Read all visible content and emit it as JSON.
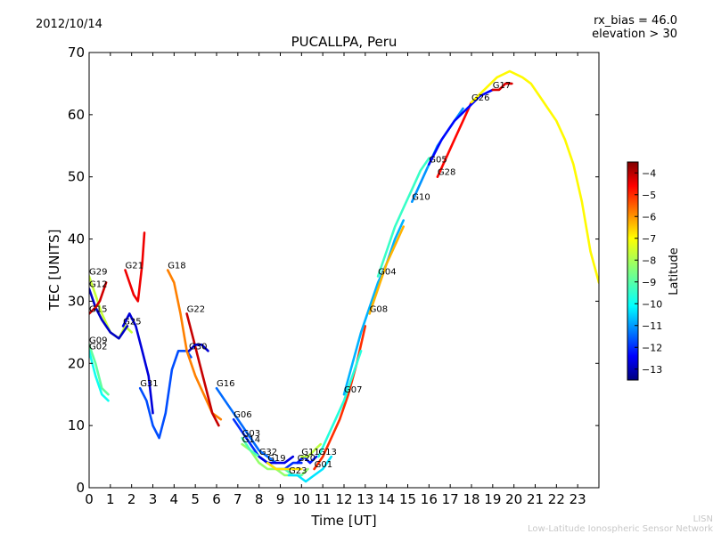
{
  "header": {
    "date": "2012/10/14",
    "info_line1": "rx_bias = 46.0",
    "info_line2": "elevation > 30"
  },
  "watermark": {
    "line1": "LISN",
    "line2": "Low-Latitude Ionospheric Sensor Network"
  },
  "chart_data": {
    "type": "line",
    "title": "PUCALLPA, Peru",
    "xlabel": "Time [UT]",
    "ylabel": "TEC [UNITS]",
    "xlim": [
      0,
      24
    ],
    "ylim": [
      0,
      70
    ],
    "xticks": [
      0,
      1,
      2,
      3,
      4,
      5,
      6,
      7,
      8,
      9,
      10,
      11,
      12,
      13,
      14,
      15,
      16,
      17,
      18,
      19,
      20,
      21,
      22,
      23
    ],
    "yticks": [
      0,
      10,
      20,
      30,
      40,
      50,
      60,
      70
    ],
    "grid": false,
    "colorbar": {
      "label": "Latitude",
      "min": -13.5,
      "max": -3.5,
      "ticks": [
        -4,
        -5,
        -6,
        -7,
        -8,
        -9,
        -10,
        -11,
        -12,
        -13
      ],
      "colormap": "jet"
    },
    "series": [
      {
        "name": "G29",
        "lat": -7.8,
        "x": [
          0,
          0.3,
          0.6,
          1.0,
          1.4,
          1.7,
          2.0
        ],
        "y": [
          34,
          31,
          28,
          25,
          24,
          26,
          25
        ]
      },
      {
        "name": "G12",
        "lat": -12.8,
        "x": [
          0,
          0.3,
          0.6,
          1.0,
          1.4,
          1.8
        ],
        "y": [
          32,
          29,
          27,
          25,
          24,
          26
        ]
      },
      {
        "name": "G15",
        "lat": -4.3,
        "x": [
          0,
          0.3,
          0.5,
          0.8
        ],
        "y": [
          28,
          29,
          30,
          33
        ]
      },
      {
        "name": "G09",
        "lat": -8.8,
        "x": [
          0,
          0.3,
          0.6,
          0.9
        ],
        "y": [
          23,
          20,
          16,
          15
        ]
      },
      {
        "name": "G02",
        "lat": -9.6,
        "x": [
          0,
          0.3,
          0.6,
          0.9
        ],
        "y": [
          22,
          18,
          15,
          14
        ]
      },
      {
        "name": "G21",
        "lat": -4.6,
        "x": [
          1.7,
          1.9,
          2.1,
          2.3,
          2.5,
          2.6
        ],
        "y": [
          35,
          33,
          31,
          30,
          36,
          41
        ]
      },
      {
        "name": "G25",
        "lat": -12.6,
        "x": [
          1.6,
          1.9,
          2.2,
          2.5,
          2.8,
          3.0
        ],
        "y": [
          26,
          28,
          26,
          22,
          18,
          12
        ]
      },
      {
        "name": "G31",
        "lat": -11.5,
        "x": [
          2.4,
          2.7,
          3.0,
          3.3,
          3.6,
          3.9,
          4.2,
          4.6,
          4.8
        ],
        "y": [
          16,
          14,
          10,
          8,
          12,
          19,
          22,
          22,
          21
        ]
      },
      {
        "name": "G18",
        "lat": -6.0,
        "x": [
          3.7,
          4.0,
          4.3,
          4.6,
          5.0,
          5.4,
          5.8,
          6.2
        ],
        "y": [
          35,
          33,
          28,
          22,
          18,
          15,
          12,
          11
        ]
      },
      {
        "name": "G22",
        "lat": -4.2,
        "x": [
          4.6,
          4.9,
          5.2,
          5.5,
          5.8,
          6.1
        ],
        "y": [
          28,
          24,
          20,
          16,
          12,
          10
        ]
      },
      {
        "name": "G30",
        "lat": -12.7,
        "x": [
          4.7,
          5.0,
          5.3,
          5.6
        ],
        "y": [
          22,
          23,
          23,
          22
        ]
      },
      {
        "name": "G16",
        "lat": -11.2,
        "x": [
          6.0,
          6.4,
          6.8,
          7.2,
          7.6,
          8.0,
          8.4,
          8.8
        ],
        "y": [
          16,
          14,
          12,
          10,
          8,
          6,
          5,
          4
        ]
      },
      {
        "name": "G06",
        "lat": -11.8,
        "x": [
          6.8,
          7.2,
          7.6,
          8.0,
          8.4,
          8.8,
          9.2,
          9.6,
          10.0
        ],
        "y": [
          11,
          9,
          7,
          5,
          4,
          3,
          3,
          4,
          4
        ]
      },
      {
        "name": "G14",
        "lat": -8.3,
        "x": [
          7.2,
          7.6,
          8.0,
          8.4,
          8.8,
          9.2,
          9.6,
          10.0,
          10.3
        ],
        "y": [
          7,
          6,
          4,
          3,
          3,
          2,
          2,
          2,
          3
        ]
      },
      {
        "name": "G03",
        "lat": -9.0,
        "x": [
          7.2,
          7.6,
          8.0,
          8.4,
          8.8,
          9.2,
          9.6,
          10.0
        ],
        "y": [
          8,
          6,
          5,
          4,
          3,
          3,
          2,
          2
        ]
      },
      {
        "name": "G32",
        "lat": -12.5,
        "x": [
          8.0,
          8.4,
          8.8,
          9.2,
          9.6
        ],
        "y": [
          5,
          4,
          4,
          4,
          5
        ]
      },
      {
        "name": "G19",
        "lat": -7.0,
        "x": [
          8.4,
          8.8,
          9.2,
          9.6,
          10.0
        ],
        "y": [
          4,
          3,
          3,
          3,
          3
        ]
      },
      {
        "name": "G20",
        "lat": -12.0,
        "x": [
          9.8,
          10.1,
          10.4,
          10.7
        ],
        "y": [
          4,
          5,
          4,
          5
        ]
      },
      {
        "name": "G11",
        "lat": -7.9,
        "x": [
          10.0,
          10.3,
          10.6,
          10.9
        ],
        "y": [
          5,
          5,
          6,
          7
        ]
      },
      {
        "name": "G23",
        "lat": -10.0,
        "x": [
          9.4,
          9.8,
          10.2,
          10.6,
          11.0,
          11.4
        ],
        "y": [
          2,
          2,
          1,
          2,
          3,
          5
        ]
      },
      {
        "name": "G01",
        "lat": -5.2,
        "x": [
          10.6,
          11.0,
          11.4,
          11.8,
          12.2,
          12.6,
          13.0
        ],
        "y": [
          3,
          5,
          8,
          11,
          15,
          20,
          26
        ]
      },
      {
        "name": "G13",
        "lat": -9.4,
        "x": [
          10.8,
          11.2,
          11.6,
          12.0,
          12.4,
          12.8
        ],
        "y": [
          5,
          8,
          11,
          14,
          18,
          22
        ]
      },
      {
        "name": "G07",
        "lat": -10.5,
        "x": [
          12.0,
          12.4,
          12.8,
          13.2,
          13.6,
          14.0,
          14.4,
          14.8
        ],
        "y": [
          15,
          20,
          25,
          29,
          33,
          36,
          40,
          43
        ]
      },
      {
        "name": "G08",
        "lat": -6.5,
        "x": [
          13.2,
          13.6,
          14.0,
          14.4,
          14.8
        ],
        "y": [
          28,
          32,
          36,
          39,
          42
        ]
      },
      {
        "name": "G04",
        "lat": -9.2,
        "x": [
          13.6,
          14.0,
          14.4,
          14.8,
          15.2,
          15.6,
          16.0
        ],
        "y": [
          34,
          38,
          42,
          45,
          48,
          51,
          53
        ]
      },
      {
        "name": "G28",
        "lat": -4.8,
        "x": [
          16.4,
          16.8,
          17.2,
          17.6,
          18.0
        ],
        "y": [
          50,
          53,
          56,
          59,
          62
        ]
      },
      {
        "name": "G10",
        "lat": -10.8,
        "x": [
          15.2,
          15.6,
          16.0,
          16.4,
          16.8,
          17.2,
          17.6
        ],
        "y": [
          46,
          49,
          52,
          55,
          57,
          59,
          61
        ]
      },
      {
        "name": "G05",
        "lat": -12.2,
        "x": [
          16.0,
          16.6,
          17.2,
          17.8,
          18.4,
          19.0
        ],
        "y": [
          52,
          56,
          59,
          61,
          63,
          64
        ]
      },
      {
        "name": "G17",
        "lat": -4.4,
        "x": [
          19.0,
          19.3,
          19.6,
          19.9
        ],
        "y": [
          64,
          64,
          65,
          65
        ]
      },
      {
        "name": "G26",
        "lat": -7.2,
        "x": [
          18.0,
          18.6,
          19.2,
          19.8,
          20.4,
          20.8,
          21.2,
          21.6,
          22.0,
          22.4,
          22.8,
          23.2,
          23.6,
          24.0
        ],
        "y": [
          62,
          64,
          66,
          67,
          66,
          65,
          63,
          61,
          59,
          56,
          52,
          46,
          38,
          33
        ]
      }
    ]
  }
}
